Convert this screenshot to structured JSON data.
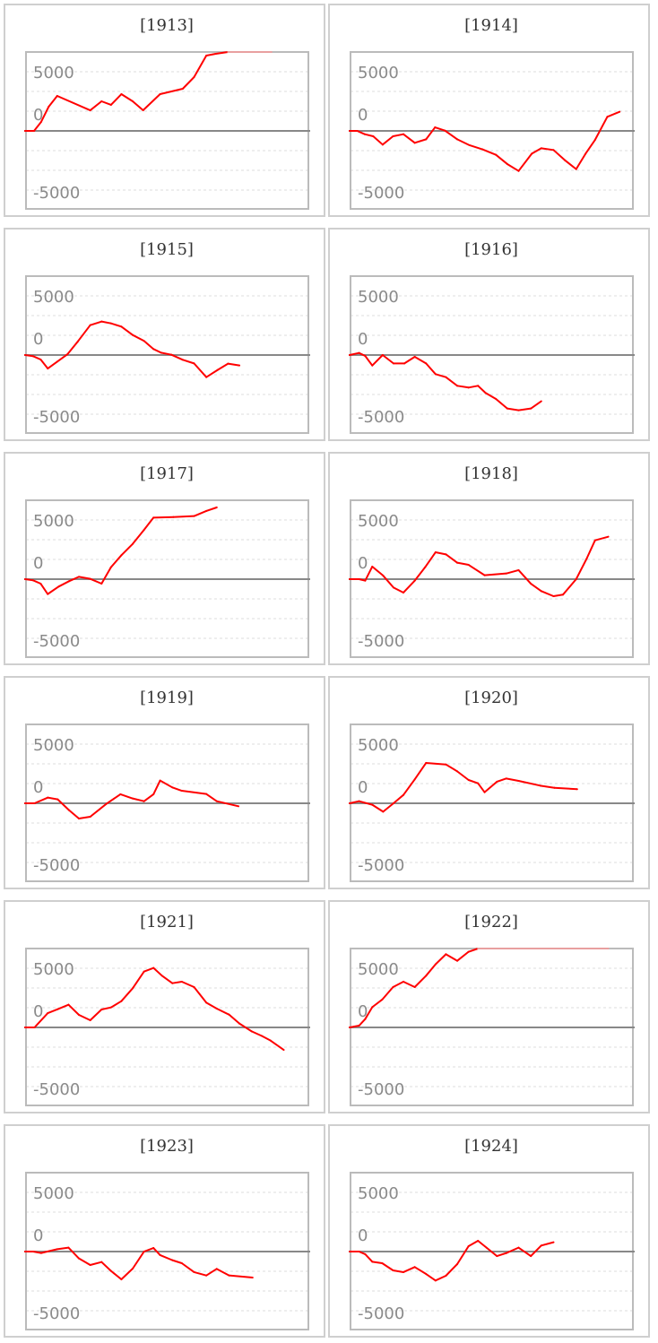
{
  "chart_data": {
    "type": "line",
    "ylim": [
      -6667,
      6667
    ],
    "xlim": [
      0,
      30
    ],
    "yticks": [
      "5000",
      "0",
      "-5000"
    ],
    "grid": true,
    "colors": {
      "line": "#ff0000",
      "clipped": "#e8a0a0",
      "zero": "#888888",
      "grid": "#dddddd",
      "frame": "#bbbbbb"
    },
    "panels": [
      {
        "title": "[1913]",
        "x": [
          0,
          0.95,
          1.7,
          2.5,
          3.4,
          6.9,
          8.1,
          9.1,
          10.2,
          11.4,
          12.5,
          14.3,
          16.7,
          17.9,
          19.2,
          20.2,
          21.5,
          24,
          26.1
        ],
        "y": [
          0,
          0,
          760,
          2045,
          2955,
          1740,
          2500,
          2200,
          3105,
          2500,
          1740,
          3105,
          3560,
          4545,
          6365,
          6515,
          6700,
          7000,
          7200
        ]
      },
      {
        "title": "[1914]",
        "x": [
          0,
          0.8,
          1.6,
          2.5,
          3.5,
          4.6,
          5.7,
          6.9,
          8.1,
          9.05,
          10.1,
          11.4,
          12.7,
          14.1,
          15.5,
          16.7,
          17.9,
          19.3,
          20.3,
          21.6,
          22.8,
          24,
          25,
          26,
          27.3,
          28.6
        ],
        "y": [
          0,
          0,
          -280,
          -455,
          -1160,
          -455,
          -280,
          -1010,
          -710,
          300,
          25,
          -710,
          -1210,
          -1565,
          -2020,
          -2800,
          -3385,
          -1920,
          -1465,
          -1615,
          -2475,
          -3230,
          -1920,
          -760,
          1190,
          1615
        ]
      },
      {
        "title": "[1915]",
        "x": [
          0,
          0.85,
          1.65,
          2.4,
          3.4,
          4.5,
          5.6,
          6.9,
          8.1,
          9.1,
          10.2,
          11.4,
          12.6,
          13.6,
          14.4,
          15.5,
          16.7,
          17.9,
          19.2,
          20.4,
          21.5,
          22.7
        ],
        "y": [
          0,
          -100,
          -380,
          -1140,
          -560,
          75,
          1160,
          2525,
          2830,
          2675,
          2400,
          1690,
          1190,
          505,
          200,
          25,
          -400,
          -710,
          -1870,
          -1260,
          -730,
          -880
        ]
      },
      {
        "title": "[1916]",
        "x": [
          0,
          1,
          1.65,
          2.4,
          3.5,
          4.65,
          5.8,
          6.9,
          8.1,
          9.1,
          10.2,
          11.4,
          12.6,
          13.6,
          14.4,
          15.5,
          16.7,
          17.9,
          19.2,
          20.3
        ],
        "y": [
          0,
          175,
          -75,
          -885,
          0,
          -710,
          -710,
          -150,
          -710,
          -1615,
          -1870,
          -2600,
          -2750,
          -2600,
          -3200,
          -3710,
          -4520,
          -4670,
          -4520,
          -3910
        ]
      },
      {
        "title": "[1917]",
        "x": [
          0,
          0.85,
          1.65,
          2.4,
          3.55,
          4.65,
          5.7,
          6.9,
          8.1,
          9.1,
          10.2,
          11.4,
          12.6,
          13.6,
          15.7,
          17.9,
          19.2,
          20.3
        ],
        "y": [
          0,
          -100,
          -380,
          -1260,
          -630,
          -175,
          200,
          25,
          -380,
          1010,
          2020,
          2980,
          4165,
          5200,
          5250,
          5330,
          5760,
          6060
        ]
      },
      {
        "title": "[1918]",
        "x": [
          0,
          1,
          1.65,
          2.4,
          3.55,
          4.65,
          5.7,
          6.9,
          8,
          9.1,
          10.2,
          11.4,
          12.6,
          14.3,
          16.6,
          17.9,
          19.2,
          20.3,
          21.6,
          22.6,
          24,
          25.1,
          26,
          27.4
        ],
        "y": [
          0,
          0,
          -125,
          1060,
          300,
          -710,
          -1135,
          -125,
          1010,
          2270,
          2095,
          1390,
          1210,
          330,
          480,
          760,
          -380,
          -1010,
          -1440,
          -1310,
          0,
          1715,
          3280,
          3585
        ]
      },
      {
        "title": "[1919]",
        "x": [
          0,
          1,
          2.4,
          3.45,
          4.65,
          5.7,
          6.9,
          8.6,
          10.1,
          11.4,
          12.6,
          13.6,
          14.3,
          15.6,
          16.6,
          19.2,
          20.3,
          22.6
        ],
        "y": [
          0,
          0,
          480,
          330,
          -580,
          -1290,
          -1135,
          -50,
          760,
          405,
          175,
          760,
          1920,
          1340,
          1060,
          785,
          175,
          -250
        ]
      },
      {
        "title": "[1920]",
        "x": [
          0,
          1,
          2.4,
          3.55,
          4.65,
          5.7,
          6.9,
          8.1,
          10.2,
          11.4,
          12.6,
          13.6,
          14.3,
          15.6,
          16.6,
          17.9,
          20.2,
          21.7,
          24.1
        ],
        "y": [
          0,
          175,
          -125,
          -710,
          0,
          705,
          2020,
          3410,
          3280,
          2700,
          1970,
          1690,
          935,
          1820,
          2095,
          1895,
          1490,
          1310,
          1190
        ]
      },
      {
        "title": "[1921]",
        "x": [
          0,
          1,
          2.4,
          3.45,
          4.6,
          5.7,
          6.9,
          8.1,
          9.1,
          10.2,
          11.4,
          12.6,
          13.6,
          14.5,
          15.6,
          16.6,
          17.9,
          19.2,
          20.3,
          21.6,
          22.7,
          24,
          25.1,
          26,
          27.4
        ],
        "y": [
          0,
          0,
          1210,
          1540,
          1920,
          1060,
          605,
          1515,
          1690,
          2220,
          3310,
          4720,
          5025,
          4370,
          3735,
          3865,
          3410,
          2095,
          1590,
          1085,
          330,
          -330,
          -730,
          -1110,
          -1895
        ]
      },
      {
        "title": "[1922]",
        "x": [
          0,
          1,
          1.65,
          2.4,
          3.45,
          4.6,
          5.7,
          6.9,
          8.1,
          9.1,
          10.2,
          11.4,
          12.6,
          13.6,
          20,
          27.4
        ],
        "y": [
          0,
          150,
          705,
          1715,
          2350,
          3410,
          3865,
          3410,
          4370,
          5330,
          6185,
          5630,
          6390,
          6800,
          7200,
          7500
        ]
      },
      {
        "title": "[1923]",
        "x": [
          0,
          0.85,
          1.7,
          3.4,
          4.6,
          5.7,
          6.9,
          8.1,
          9.1,
          10.2,
          11.4,
          12.6,
          13.6,
          14.3,
          15.6,
          16.6,
          17.9,
          19.2,
          20.3,
          21.6,
          24.1
        ],
        "y": [
          0,
          0,
          -125,
          200,
          330,
          -580,
          -1135,
          -885,
          -1640,
          -2350,
          -1440,
          0,
          300,
          -300,
          -730,
          -985,
          -1740,
          -2020,
          -1465,
          -2020,
          -2200
        ]
      },
      {
        "title": "[1924]",
        "x": [
          0,
          1,
          1.65,
          2.4,
          3.45,
          4.6,
          5.7,
          6.9,
          8.1,
          9.1,
          10.2,
          11.4,
          12.6,
          13.6,
          14.5,
          15.6,
          16.6,
          17.9,
          19.2,
          20.3,
          21.6
        ],
        "y": [
          0,
          0,
          -225,
          -860,
          -985,
          -1590,
          -1740,
          -1310,
          -1895,
          -2450,
          -2045,
          -1060,
          455,
          910,
          330,
          -380,
          -125,
          330,
          -380,
          505,
          785
        ]
      }
    ]
  }
}
